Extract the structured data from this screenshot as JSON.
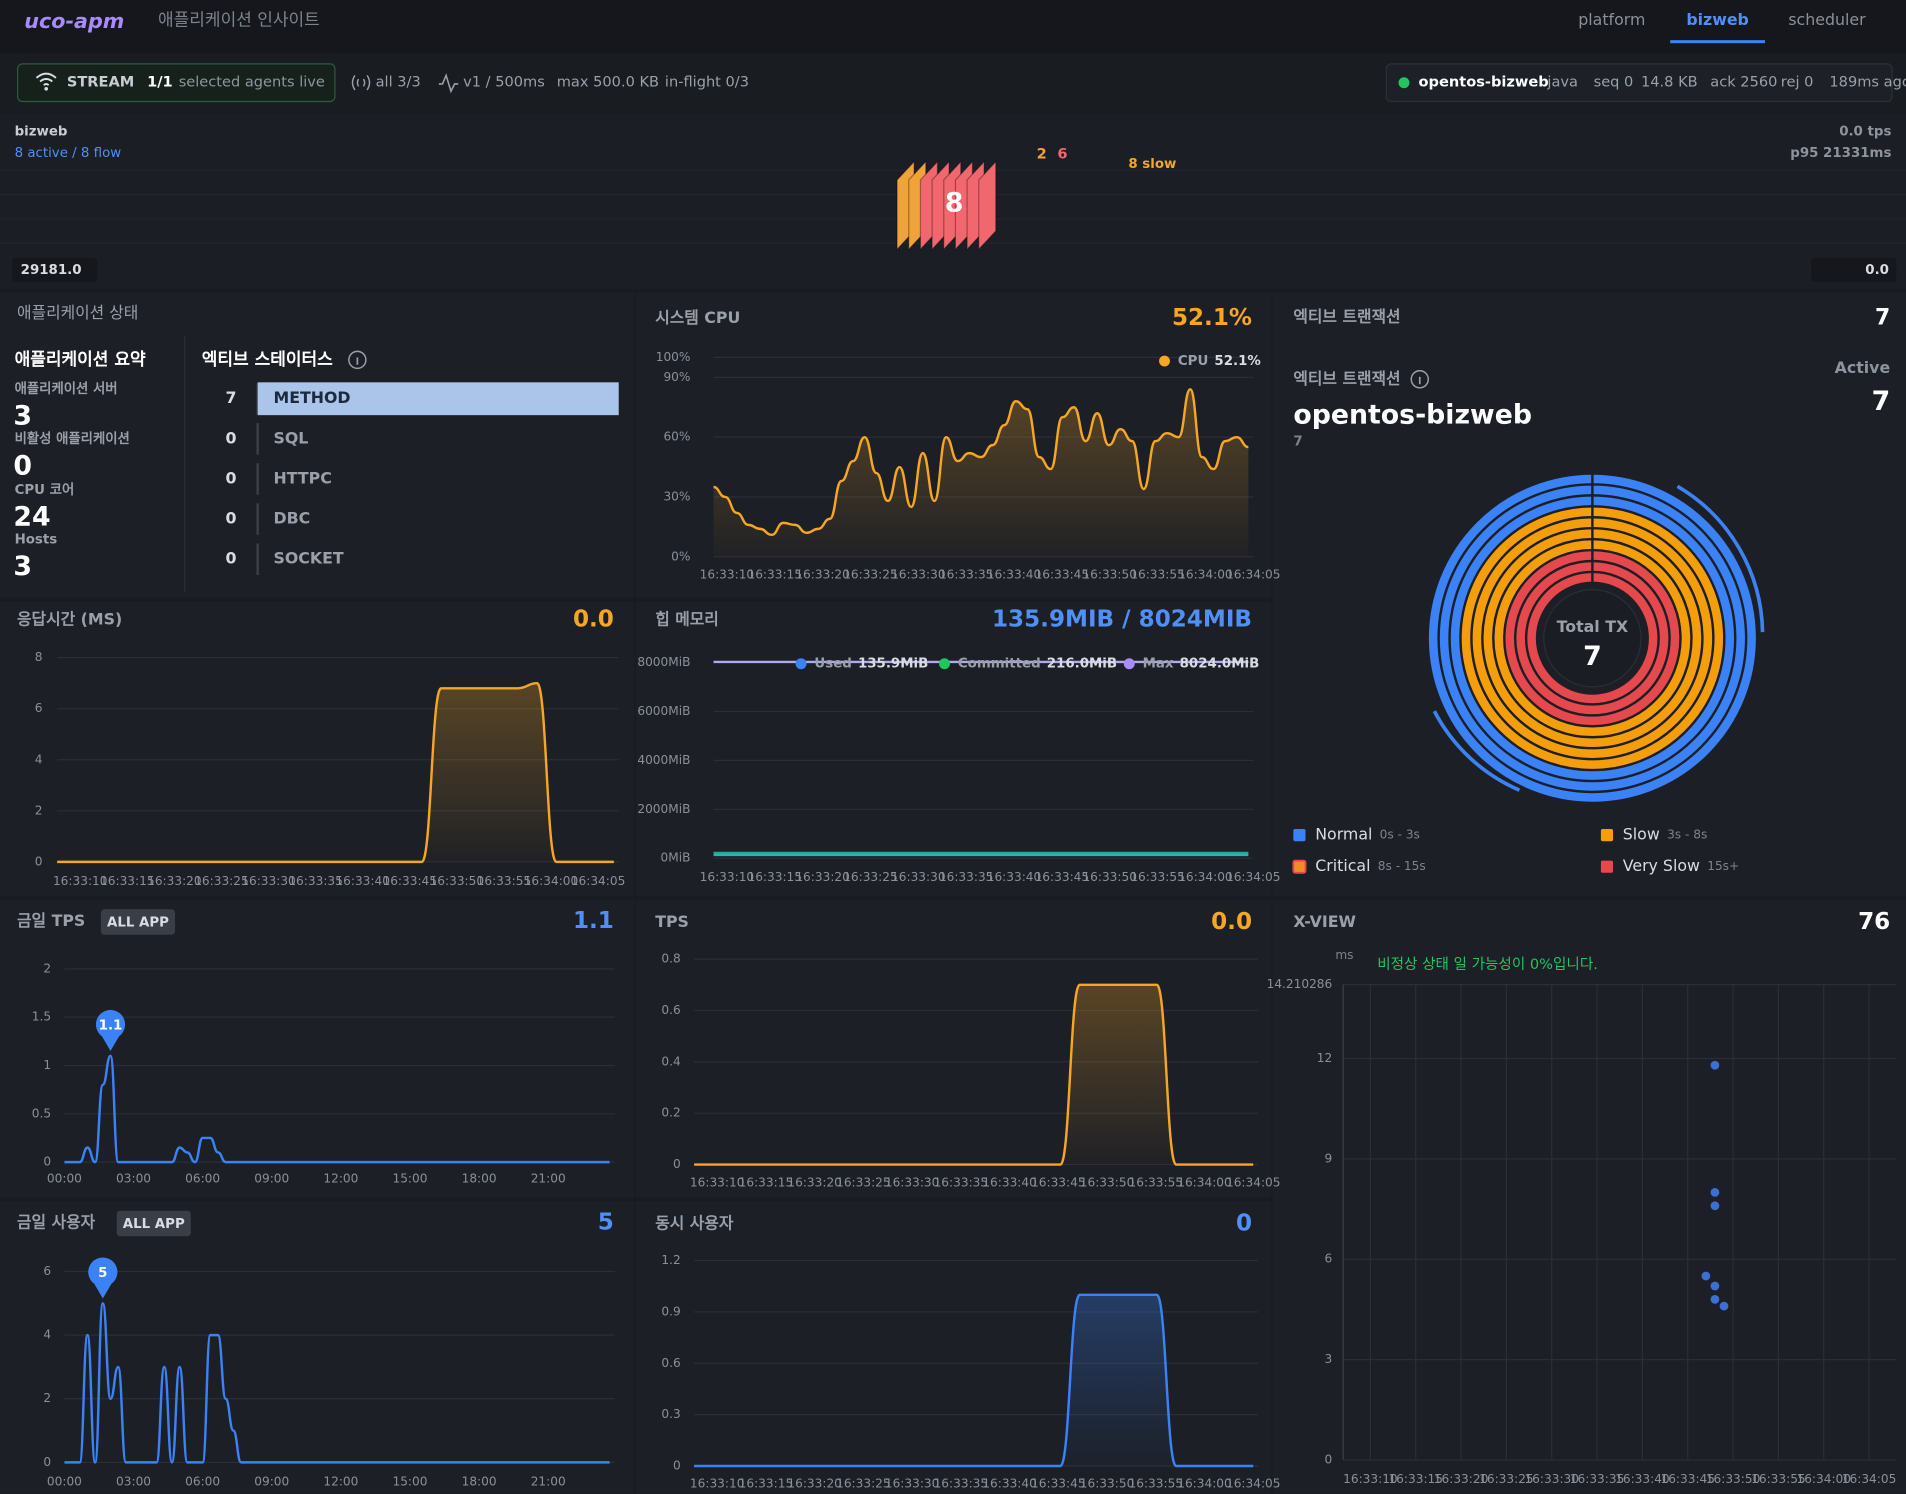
{
  "header": {
    "logo": "uco-apm",
    "subtitle": "애플리케이션 인사이트",
    "tabs": [
      "platform",
      "bizweb",
      "scheduler"
    ],
    "active_tab": 1
  },
  "stream": {
    "label": "STREAM",
    "count": "1/1",
    "status": "selected agents live",
    "items": [
      "all 3/3",
      "v1 / 500ms",
      "max 500.0 KB",
      "in-flight 0/3"
    ]
  },
  "agent": {
    "name": "opentos-bizweb",
    "items": [
      "java",
      "seq 0",
      "14.8 KB",
      "ack 2560",
      "rej 0",
      "189ms ago"
    ]
  },
  "flow": {
    "name": "bizweb",
    "summary": "8 active / 8 flow",
    "tps": "0.0 tps",
    "p95": "p95 21331ms",
    "counts": [
      {
        "value": 2,
        "color": "#f0a33a"
      },
      {
        "value": 6,
        "color": "#f0676e"
      }
    ],
    "slow": "8 slow",
    "total": 8,
    "left_value": "29181.0",
    "right_value": "0.0"
  },
  "status": {
    "title": "애플리케이션 상태",
    "summary_title": "애플리케이션 요약",
    "stats": [
      {
        "label": "애플리케이션 서버",
        "value": 3
      },
      {
        "label": "비활성 애플리케이션",
        "value": 0
      },
      {
        "label": "CPU 코어",
        "value": 24
      },
      {
        "label": "Hosts",
        "value": 3
      }
    ],
    "active_title": "엑티브 스테이터스"
  },
  "active_tx": {
    "title": "엑티브 트랜잭션",
    "total": 7,
    "subtitle": "엑티브 트랜잭션",
    "active_label": "Active",
    "active": 7,
    "app": "opentos-bizweb",
    "app_count": 7,
    "center_label": "Total TX",
    "center_value": 7,
    "legend": [
      {
        "name": "Normal",
        "range": "0s - 3s",
        "color": "#3b82f6"
      },
      {
        "name": "Slow",
        "range": "3s - 8s",
        "color": "#f59e0b"
      },
      {
        "name": "Critical",
        "range": "8s - 15s",
        "color": "#f28c28"
      },
      {
        "name": "Very Slow",
        "range": "15s+",
        "color": "#e5484d"
      }
    ]
  },
  "chart_data": [
    {
      "type": "hbar",
      "categories": [
        "METHOD",
        "SQL",
        "HTTPC",
        "DBC",
        "SOCKET"
      ],
      "values": [
        7,
        0,
        0,
        0,
        0
      ],
      "xlim": [
        0,
        7
      ],
      "color": "#aac4ea"
    },
    {
      "type": "line",
      "title": "시스템 CPU",
      "headline": "52.1%",
      "area": true,
      "legend": true,
      "ylim": [
        0,
        100
      ],
      "yticks": [
        {
          "value": 0,
          "label": "0%"
        },
        {
          "value": 30,
          "label": "30%"
        },
        {
          "value": 60,
          "label": "60%"
        },
        {
          "value": 90,
          "label": "90%"
        },
        {
          "value": 100,
          "label": "100%"
        }
      ],
      "xticks": [
        "16:33:10",
        "16:33:15",
        "16:33:20",
        "16:33:25",
        "16:33:30",
        "16:33:35",
        "16:33:40",
        "16:33:45",
        "16:33:50",
        "16:33:55",
        "16:34:00",
        "16:34:05"
      ],
      "series": [
        {
          "name": "CPU",
          "legend_value": "52.1%",
          "color": "#f5a623",
          "values": [
            35,
            30,
            22,
            16,
            14,
            11,
            17,
            16,
            12,
            14,
            19,
            38,
            48,
            60,
            42,
            28,
            45,
            25,
            52,
            28,
            60,
            48,
            52,
            50,
            56,
            66,
            78,
            74,
            50,
            44,
            70,
            75,
            58,
            72,
            56,
            64,
            58,
            34,
            58,
            62,
            60,
            84,
            50,
            44,
            58,
            60,
            55
          ]
        }
      ]
    },
    {
      "type": "line",
      "title": "응답시간 (MS)",
      "headline": "0.0",
      "area": true,
      "ylim": [
        0,
        8
      ],
      "yticks": [
        0,
        2,
        4,
        6,
        8
      ],
      "xticks": [
        "16:33:10",
        "16:33:15",
        "16:33:20",
        "16:33:25",
        "16:33:30",
        "16:33:35",
        "16:33:40",
        "16:33:45",
        "16:33:50",
        "16:33:55",
        "16:34:00",
        "16:34:05"
      ],
      "series": [
        {
          "name": "응답시간",
          "color": "#f5a623",
          "values": [
            0,
            0,
            0,
            0,
            0,
            0,
            0,
            0,
            0,
            0,
            0,
            0,
            0,
            0,
            0,
            0,
            0,
            0,
            0,
            0,
            6.8,
            6.8,
            6.8,
            6.8,
            6.8,
            7.0,
            0,
            0,
            0,
            0
          ]
        }
      ]
    },
    {
      "type": "line",
      "title": "힙 메모리",
      "headline": "135.9MIB / 8024MIB",
      "legend": true,
      "ylim": [
        0,
        8000
      ],
      "yticks": [
        {
          "value": 0,
          "label": "0MiB"
        },
        {
          "value": 2000,
          "label": "2000MiB"
        },
        {
          "value": 4000,
          "label": "4000MiB"
        },
        {
          "value": 6000,
          "label": "6000MiB"
        },
        {
          "value": 8000,
          "label": "8000MiB"
        }
      ],
      "xticks": [
        "16:33:10",
        "16:33:15",
        "16:33:20",
        "16:33:25",
        "16:33:30",
        "16:33:35",
        "16:33:40",
        "16:33:45",
        "16:33:50",
        "16:33:55",
        "16:34:00",
        "16:34:05"
      ],
      "series": [
        {
          "name": "Used",
          "legend_value": "135.9MiB",
          "color": "#3b82f6",
          "line_color": "#22b8b0",
          "values": [
            135.9,
            135.9,
            135.9,
            135.9,
            135.9,
            135.9,
            135.9,
            135.9,
            135.9,
            135.9,
            135.9,
            135.9
          ]
        },
        {
          "name": "Committed",
          "legend_value": "216.0MiB",
          "color": "#22c55e",
          "line_color": "#1fa89a",
          "values": [
            216,
            216,
            216,
            216,
            216,
            216,
            216,
            216,
            216,
            216,
            216,
            216
          ]
        },
        {
          "name": "Max",
          "legend_value": "8024.0MiB",
          "color": "#a78bfa",
          "line_color": "#b4a6f0",
          "values": [
            8024,
            8024,
            8024,
            8024,
            8024,
            8024,
            8024,
            8024,
            8024,
            8024,
            8024,
            8024
          ]
        }
      ]
    },
    {
      "type": "line",
      "title": "금일 TPS",
      "badge": "ALL APP",
      "headline": "1.1",
      "peak": true,
      "ylim": [
        0,
        2
      ],
      "yticks": [
        0,
        0.5,
        1,
        1.5,
        2
      ],
      "xticks": [
        "00:00",
        "03:00",
        "06:00",
        "09:00",
        "12:00",
        "15:00",
        "18:00",
        "21:00"
      ],
      "series": [
        {
          "name": "TPS",
          "color": "#3b82f6",
          "values": [
            0,
            0,
            0,
            0.15,
            0,
            0.8,
            1.1,
            0,
            0,
            0,
            0,
            0,
            0,
            0,
            0,
            0.15,
            0.1,
            0,
            0.25,
            0.25,
            0.1,
            0,
            0,
            0,
            0,
            0,
            0,
            0,
            0,
            0,
            0,
            0,
            0,
            0,
            0,
            0,
            0,
            0,
            0,
            0,
            0,
            0,
            0,
            0,
            0,
            0,
            0,
            0,
            0,
            0,
            0,
            0,
            0,
            0,
            0,
            0,
            0,
            0,
            0,
            0,
            0,
            0,
            0,
            0,
            0,
            0,
            0,
            0,
            0,
            0,
            0,
            0
          ]
        }
      ]
    },
    {
      "type": "line",
      "title": "TPS",
      "headline": "0.0",
      "area": true,
      "ylim": [
        0,
        0.8
      ],
      "yticks": [
        0,
        0.2,
        0.4,
        0.6,
        0.8
      ],
      "xticks": [
        "16:33:10",
        "16:33:15",
        "16:33:20",
        "16:33:25",
        "16:33:30",
        "16:33:35",
        "16:33:40",
        "16:33:45",
        "16:33:50",
        "16:33:55",
        "16:34:00",
        "16:34:05"
      ],
      "series": [
        {
          "name": "TPS",
          "color": "#f5a623",
          "values": [
            0,
            0,
            0,
            0,
            0,
            0,
            0,
            0,
            0,
            0,
            0,
            0,
            0,
            0,
            0,
            0,
            0,
            0,
            0,
            0,
            0.7,
            0.7,
            0.7,
            0.7,
            0.7,
            0,
            0,
            0,
            0,
            0
          ]
        }
      ]
    },
    {
      "type": "line",
      "title": "금일 사용자",
      "badge": "ALL APP",
      "headline": "5",
      "peak": true,
      "ylim": [
        0,
        6
      ],
      "yticks": [
        0,
        2,
        4,
        6
      ],
      "xticks": [
        "00:00",
        "03:00",
        "06:00",
        "09:00",
        "12:00",
        "15:00",
        "18:00",
        "21:00"
      ],
      "series": [
        {
          "name": "사용자",
          "color": "#3b82f6",
          "values": [
            0,
            0,
            0,
            4,
            0,
            5,
            2,
            3,
            0,
            0,
            0,
            0,
            0,
            3,
            0,
            3,
            0,
            0,
            0,
            4,
            4,
            2,
            1,
            0,
            0,
            0,
            0,
            0,
            0,
            0,
            0,
            0,
            0,
            0,
            0,
            0,
            0,
            0,
            0,
            0,
            0,
            0,
            0,
            0,
            0,
            0,
            0,
            0,
            0,
            0,
            0,
            0,
            0,
            0,
            0,
            0,
            0,
            0,
            0,
            0,
            0,
            0,
            0,
            0,
            0,
            0,
            0,
            0,
            0,
            0,
            0,
            0
          ]
        }
      ]
    },
    {
      "type": "line",
      "title": "동시 사용자",
      "headline": "0",
      "area": true,
      "ylim": [
        0,
        1.2
      ],
      "yticks": [
        0,
        0.3,
        0.6,
        0.9,
        1.2
      ],
      "xticks": [
        "16:33:10",
        "16:33:15",
        "16:33:20",
        "16:33:25",
        "16:33:30",
        "16:33:35",
        "16:33:40",
        "16:33:45",
        "16:33:50",
        "16:33:55",
        "16:34:00",
        "16:34:05"
      ],
      "series": [
        {
          "name": "동시 사용자",
          "color": "#3b82f6",
          "values": [
            0,
            0,
            0,
            0,
            0,
            0,
            0,
            0,
            0,
            0,
            0,
            0,
            0,
            0,
            0,
            0,
            0,
            0,
            0,
            0,
            1,
            1,
            1,
            1,
            1,
            0,
            0,
            0,
            0,
            0
          ]
        }
      ]
    },
    {
      "type": "scatter",
      "title": "X-VIEW",
      "headline": "76",
      "y_unit": "ms",
      "note": "비정상 상태 일 가능성이 0%입니다.",
      "color": "#3b6fd6",
      "ylim": [
        0,
        14.210286
      ],
      "yticks": [
        0,
        3,
        6,
        9,
        12,
        14.210286
      ],
      "xlim": [
        59587,
        59648
      ],
      "xticks": [
        {
          "value": 59590,
          "label": "16:33:10"
        },
        {
          "value": 59595,
          "label": "16:33:15"
        },
        {
          "value": 59600,
          "label": "16:33:20"
        },
        {
          "value": 59605,
          "label": "16:33:25"
        },
        {
          "value": 59610,
          "label": "16:33:30"
        },
        {
          "value": 59615,
          "label": "16:33:35"
        },
        {
          "value": 59620,
          "label": "16:33:40"
        },
        {
          "value": 59625,
          "label": "16:33:45"
        },
        {
          "value": 59630,
          "label": "16:33:50"
        },
        {
          "value": 59635,
          "label": "16:33:55"
        },
        {
          "value": 59640,
          "label": "16:34:00"
        },
        {
          "value": 59645,
          "label": "16:34:05"
        }
      ],
      "x": [
        59628,
        59628,
        59628,
        59627,
        59628,
        59628,
        59629
      ],
      "y": [
        11.8,
        8.0,
        7.6,
        5.5,
        5.2,
        4.8,
        4.6
      ]
    }
  ]
}
